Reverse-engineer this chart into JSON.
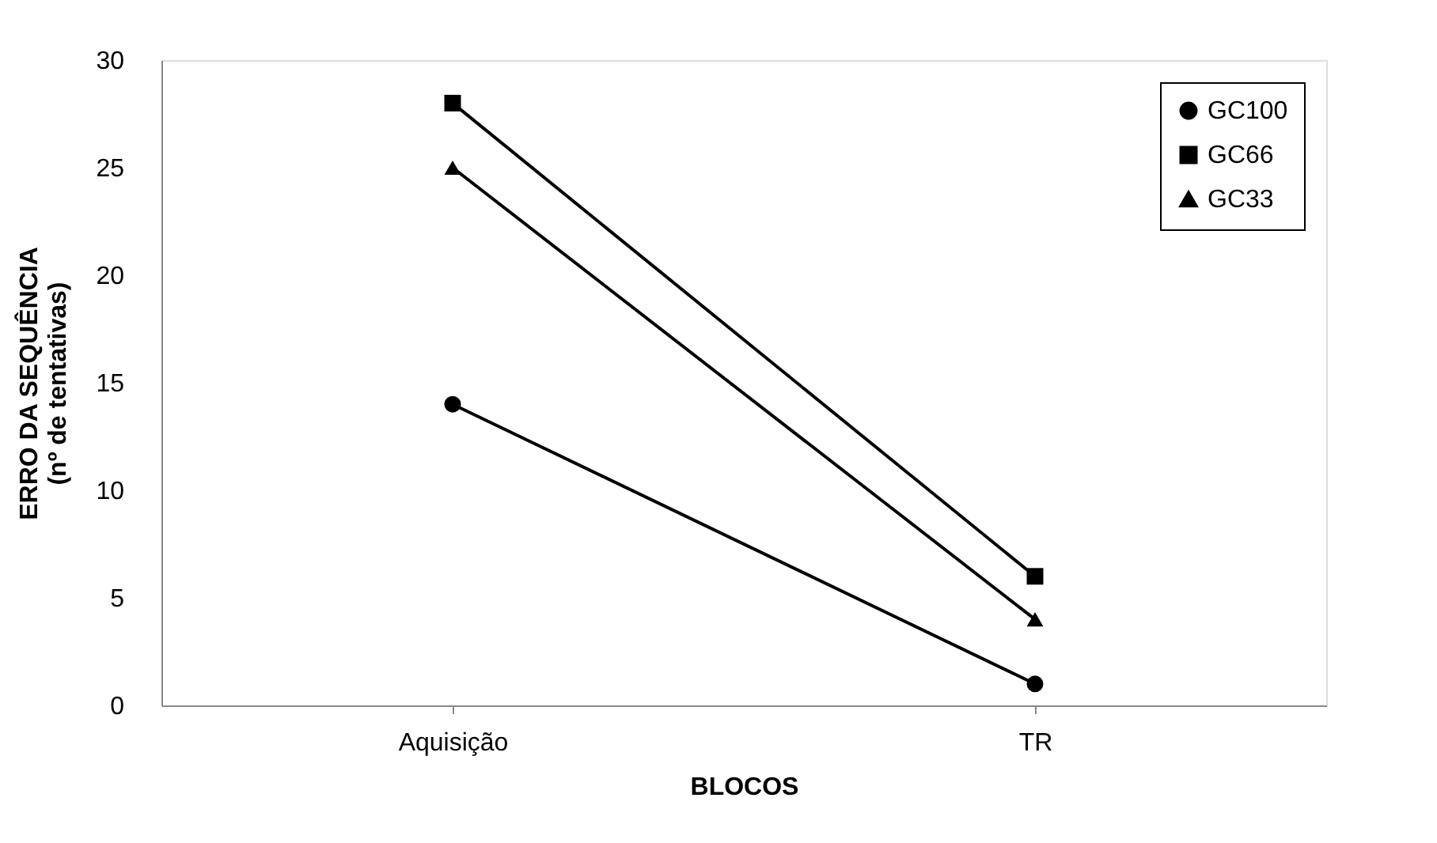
{
  "chart_data": {
    "type": "line",
    "xlabel": "BLOCOS",
    "ylabel": "ERRO DA SEQUÊNCIA\n(nº de tentativas)",
    "categories": [
      "Aquisição",
      "TR"
    ],
    "series": [
      {
        "name": "GC100",
        "color": "#000000",
        "marker": "circle",
        "values": [
          14,
          1
        ]
      },
      {
        "name": "GC66",
        "color": "#000000",
        "marker": "square",
        "values": [
          28,
          6
        ]
      },
      {
        "name": "GC33",
        "color": "#000000",
        "marker": "triangle",
        "values": [
          25,
          4
        ]
      }
    ],
    "ylim": [
      0,
      30
    ],
    "yticks": [
      0,
      5,
      10,
      15,
      20,
      25,
      30
    ],
    "grid": false,
    "legend": "top right",
    "line_style": "solid"
  }
}
